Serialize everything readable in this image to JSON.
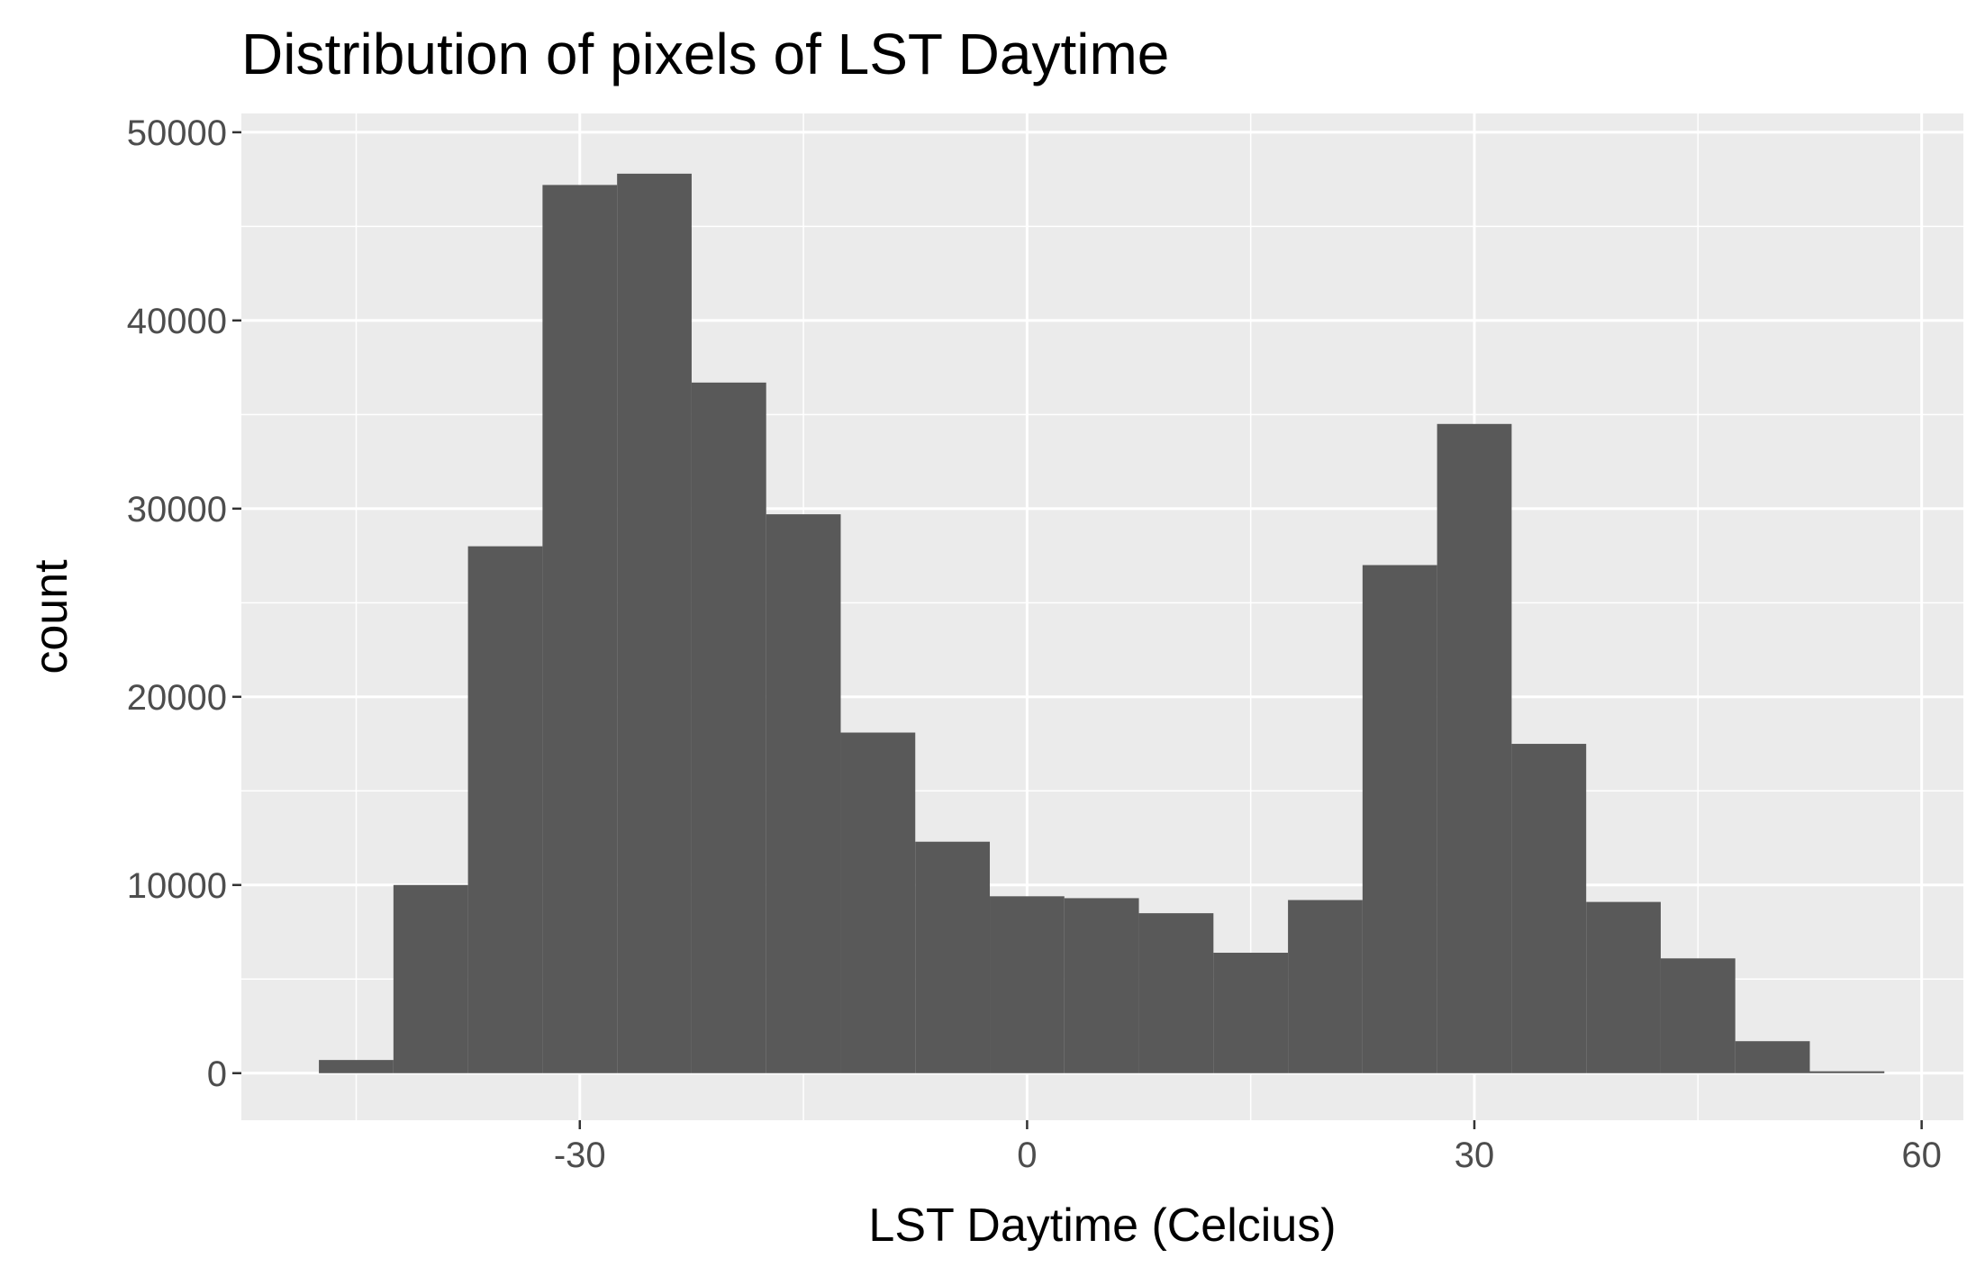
{
  "chart_data": {
    "type": "bar",
    "title": "Distribution of pixels of LST Daytime",
    "xlabel": "LST Daytime (Celcius)",
    "ylabel": "count",
    "bin_width": 5,
    "bin_starts": [
      -47.5,
      -42.5,
      -37.5,
      -32.5,
      -27.5,
      -22.5,
      -17.5,
      -12.5,
      -7.5,
      -2.5,
      2.5,
      7.5,
      12.5,
      17.5,
      22.5,
      27.5,
      32.5,
      37.5,
      42.5,
      47.5,
      52.5
    ],
    "values": [
      700,
      10000,
      28000,
      47200,
      47800,
      36700,
      29700,
      18100,
      12300,
      9400,
      9300,
      8500,
      6400,
      9200,
      27000,
      34500,
      17500,
      9100,
      6100,
      1700,
      100
    ],
    "xlim": [
      -52.7,
      62.8
    ],
    "ylim": [
      -2500,
      51000
    ],
    "x_ticks": [
      -30,
      0,
      30,
      60
    ],
    "x_tick_labels": [
      "-30",
      "0",
      "30",
      "60"
    ],
    "y_ticks": [
      0,
      10000,
      20000,
      30000,
      40000,
      50000
    ],
    "y_tick_labels": [
      "0",
      "10000",
      "20000",
      "30000",
      "40000",
      "50000"
    ],
    "grid": true,
    "colors": {
      "panel_background": "#ebebeb",
      "grid_major": "#ffffff",
      "bar_fill": "#595959",
      "tick_color": "#333333"
    }
  }
}
